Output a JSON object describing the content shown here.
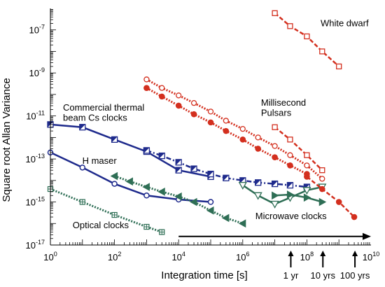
{
  "chart_data": {
    "type": "line",
    "xlabel": "Integration time [s]",
    "ylabel": "Square root Allan Variance",
    "x_scale": "log",
    "y_scale": "log",
    "xlim": [
      1,
      10000000000
    ],
    "ylim": [
      1e-17,
      1e-06
    ],
    "grid": false,
    "x_ticks": [
      {
        "value": 1,
        "base": "10",
        "exp": "0"
      },
      {
        "value": 100,
        "base": "10",
        "exp": "2"
      },
      {
        "value": 10000,
        "base": "10",
        "exp": "4"
      },
      {
        "value": 1000000,
        "base": "10",
        "exp": "6"
      },
      {
        "value": 100000000,
        "base": "10",
        "exp": "8"
      },
      {
        "value": 10000000000,
        "base": "10",
        "exp": "10"
      }
    ],
    "y_ticks": [
      {
        "value": 1e-17,
        "base": "10",
        "exp": "-17"
      },
      {
        "value": 1e-15,
        "base": "10",
        "exp": "-15"
      },
      {
        "value": 1e-13,
        "base": "10",
        "exp": "-13"
      },
      {
        "value": 1e-11,
        "base": "10",
        "exp": "-11"
      },
      {
        "value": 1e-09,
        "base": "10",
        "exp": "-9"
      },
      {
        "value": 1e-07,
        "base": "10",
        "exp": "-7"
      }
    ],
    "colors": {
      "navy": "#1e2a8c",
      "red": "#d32f1e",
      "green": "#2e6e55"
    },
    "series": [
      {
        "label": "Commercial thermal beam Cs clocks",
        "color": "#1e2a8c",
        "marker": "halfsquare",
        "dash": "solid",
        "x": [
          1,
          10,
          100,
          1000,
          10000,
          100000
        ],
        "y": [
          4e-12,
          3e-12,
          8e-13,
          2.2e-13,
          3e-14,
          1.5e-14
        ]
      },
      {
        "label": "",
        "color": "#1e2a8c",
        "marker": "halfsquare",
        "dash": "dashdot",
        "x": [
          1000,
          3000,
          10000,
          30000,
          100000,
          300000,
          1000000,
          3000000,
          10000000,
          30000000,
          100000000
        ],
        "y": [
          2.5e-13,
          1.4e-13,
          7e-14,
          3.5e-14,
          2e-14,
          1.3e-14,
          1e-14,
          8e-15,
          7e-15,
          6e-15,
          5e-15
        ]
      },
      {
        "label": "H maser",
        "color": "#1e2a8c",
        "marker": "circle",
        "dash": "solid",
        "x": [
          1,
          10,
          100,
          1000,
          10000,
          100000
        ],
        "y": [
          2e-13,
          4e-14,
          7e-15,
          2e-15,
          1.3e-15,
          1e-15
        ]
      },
      {
        "label": "Optical clocks",
        "color": "#2e6e55",
        "marker": "plus-square",
        "dash": "dotted",
        "x": [
          1,
          10,
          100,
          1000,
          3000
        ],
        "y": [
          4e-15,
          1e-15,
          2.5e-16,
          7e-17,
          4e-17
        ]
      },
      {
        "label": "Microwave clocks",
        "color": "#2e6e55",
        "marker": "triangle-left",
        "dash": "dotted",
        "x": [
          100,
          300,
          1000,
          3000,
          10000,
          30000,
          100000,
          300000,
          1000000
        ],
        "y": [
          1.6e-14,
          9e-15,
          5e-15,
          3e-15,
          1.8e-15,
          1e-15,
          4e-16,
          1.8e-16,
          1e-16
        ]
      },
      {
        "label": "",
        "color": "#2e6e55",
        "marker": "triangle-down",
        "dash": "solid",
        "x": [
          1000000,
          3000000,
          10000000,
          30000000,
          100000000,
          300000000
        ],
        "y": [
          6e-15,
          2e-15,
          8e-16,
          1.6e-15,
          3.5e-15,
          5e-15
        ]
      },
      {
        "label": "",
        "color": "#2e6e55",
        "marker": "triangle-right",
        "dash": "solid",
        "x": [
          10000000,
          30000000,
          100000000,
          300000000
        ],
        "y": [
          2e-15,
          2.2e-15,
          1.6e-15,
          1e-15
        ]
      },
      {
        "label": "Millisecond Pulsars",
        "color": "#d32f1e",
        "marker": "circle-open",
        "dash": "dotted",
        "x": [
          1000,
          3000,
          10000,
          30000,
          100000,
          300000,
          1000000,
          3000000,
          10000000,
          30000000,
          100000000,
          300000000
        ],
        "y": [
          5e-10,
          2e-10,
          9e-11,
          4e-11,
          1.6e-11,
          6e-12,
          2.5e-12,
          1e-12,
          4e-13,
          1.5e-13,
          5e-14,
          1.2e-14
        ]
      },
      {
        "label": "",
        "color": "#d32f1e",
        "marker": "circle-filled",
        "dash": "dotted",
        "x": [
          1000,
          3000,
          10000,
          30000,
          100000,
          300000,
          1000000,
          3000000,
          10000000,
          30000000,
          100000000
        ],
        "y": [
          2e-10,
          8e-11,
          3e-11,
          1.2e-11,
          5e-12,
          2e-12,
          8e-13,
          3e-13,
          1.2e-13,
          5e-14,
          2e-14
        ]
      },
      {
        "label": "",
        "color": "#d32f1e",
        "marker": "square-open",
        "dash": "dashed",
        "x": [
          10000000,
          30000000,
          100000000,
          300000000
        ],
        "y": [
          3e-12,
          8e-13,
          1.5e-13,
          3e-14
        ]
      },
      {
        "label": "",
        "color": "#d32f1e",
        "marker": "circle-filled",
        "dash": "dashed",
        "x": [
          100000000,
          300000000,
          1000000000,
          3000000000
        ],
        "y": [
          1.5e-14,
          4e-15,
          1e-15,
          2e-16
        ]
      },
      {
        "label": "White dwarf",
        "color": "#d32f1e",
        "marker": "square-open",
        "dash": "dashed",
        "x": [
          10000000,
          30000000,
          100000000,
          300000000,
          1000000000
        ],
        "y": [
          6e-07,
          1.5e-07,
          5e-08,
          1e-08,
          2e-09
        ]
      }
    ],
    "annotations": [
      {
        "text": "White dwarf",
        "x": 400000000,
        "y": 1.5e-07
      },
      {
        "text": "Millisecond",
        "x": 1500000,
        "y": 3e-11
      },
      {
        "text": "Pulsars",
        "x": 1500000,
        "y": 1e-11
      },
      {
        "text": "Commercial thermal",
        "x": 1,
        "y": 1.8e-11
      },
      {
        "text": "beam Cs clocks",
        "x": 1,
        "y": 6e-12
      },
      {
        "text": "H maser",
        "x": 4,
        "y": 6e-14
      },
      {
        "text": "Optical clocks",
        "x": 2,
        "y": 6e-17
      },
      {
        "text": "Microwave clocks",
        "x": 1000000,
        "y": 1.6e-16
      }
    ],
    "time_markers": [
      {
        "label": "1 yr",
        "x": 31557600
      },
      {
        "label": "10 yrs",
        "x": 315576000
      },
      {
        "label": "100 yrs",
        "x": 3155760000
      }
    ],
    "arrow": {
      "x_start": 10000,
      "x_end": 10000000000,
      "y": 2.5e-17
    }
  }
}
